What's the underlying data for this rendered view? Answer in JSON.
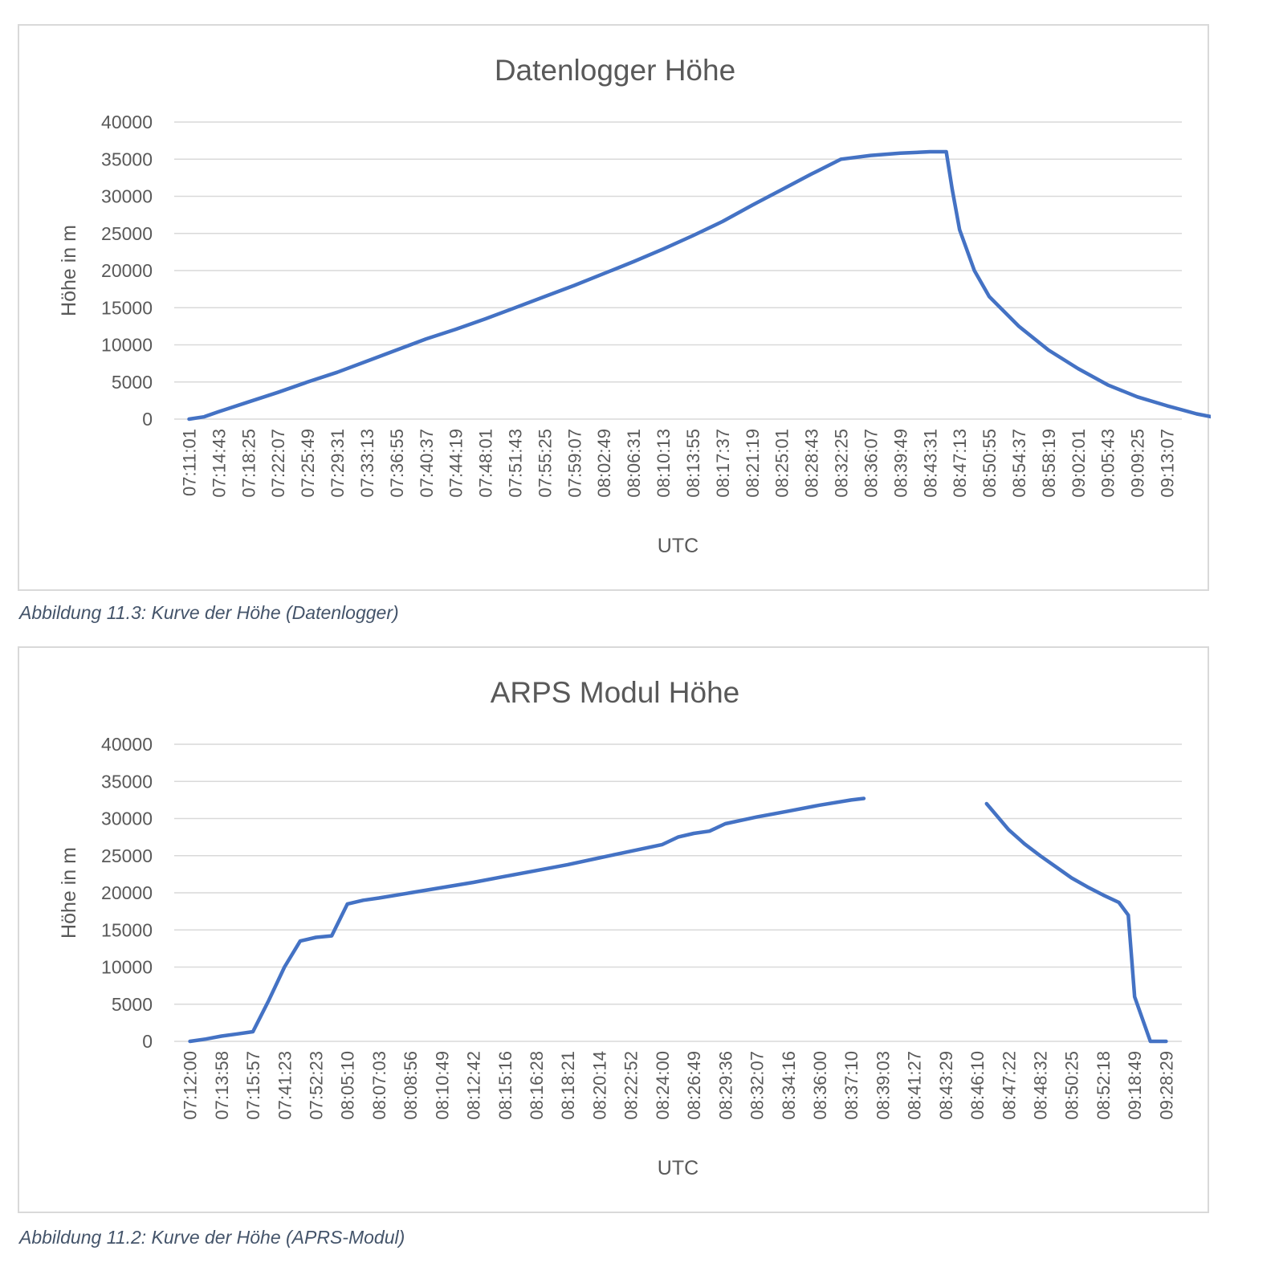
{
  "colors": {
    "series": "#4472c4",
    "grid": "#d9d9d9",
    "text": "#595959",
    "caption": "#44546a"
  },
  "captions": [
    "Abbildung 11.3: Kurve der Höhe (Datenlogger)",
    "Abbildung 11.2: Kurve der Höhe (APRS-Modul)"
  ],
  "chart_data": [
    {
      "type": "line",
      "title": "Datenlogger Höhe",
      "xlabel": "UTC",
      "ylabel": "Höhe in m",
      "ylim": [
        0,
        40000
      ],
      "yticks": [
        "0",
        "5000",
        "10000",
        "15000",
        "20000",
        "25000",
        "30000",
        "35000",
        "40000"
      ],
      "grid": true,
      "legend": "none",
      "categories": [
        "07:11:01",
        "07:14:43",
        "07:18:25",
        "07:22:07",
        "07:25:49",
        "07:29:31",
        "07:33:13",
        "07:36:55",
        "07:40:37",
        "07:44:19",
        "07:48:01",
        "07:51:43",
        "07:55:25",
        "07:59:07",
        "08:02:49",
        "08:06:31",
        "08:10:13",
        "08:13:55",
        "08:17:37",
        "08:21:19",
        "08:25:01",
        "08:28:43",
        "08:32:25",
        "08:36:07",
        "08:39:49",
        "08:43:31",
        "08:47:13",
        "08:50:55",
        "08:54:37",
        "08:58:19",
        "09:02:01",
        "09:05:43",
        "09:09:25",
        "09:13:07"
      ],
      "series": [
        {
          "x": [
            0,
            0.5,
            1,
            2,
            3,
            4,
            5,
            6,
            7,
            8,
            9,
            10,
            11,
            12,
            13,
            14,
            15,
            16,
            17,
            18,
            19,
            20,
            21,
            22,
            23,
            24,
            25,
            25.55,
            25.75,
            26,
            26.5,
            27,
            28,
            29,
            30,
            31,
            32,
            33,
            34,
            34.9
          ],
          "values": [
            0,
            300,
            1000,
            2300,
            3600,
            5000,
            6300,
            7800,
            9300,
            10800,
            12100,
            13500,
            15000,
            16500,
            18000,
            19600,
            21200,
            22900,
            24700,
            26600,
            28800,
            30900,
            33000,
            35000,
            35500,
            35800,
            36000,
            36000,
            31000,
            25500,
            20000,
            16500,
            12500,
            9300,
            6800,
            4600,
            3000,
            1800,
            700,
            0
          ]
        }
      ]
    },
    {
      "type": "line",
      "title": "ARPS Modul Höhe",
      "xlabel": "UTC",
      "ylabel": "Höhe in m",
      "ylim": [
        0,
        40000
      ],
      "yticks": [
        "0",
        "5000",
        "10000",
        "15000",
        "20000",
        "25000",
        "30000",
        "35000",
        "40000"
      ],
      "grid": true,
      "legend": "none",
      "categories": [
        "07:12:00",
        "07:13:58",
        "07:15:57",
        "07:41:23",
        "07:52:23",
        "08:05:10",
        "08:07:03",
        "08:08:56",
        "08:10:49",
        "08:12:42",
        "08:15:16",
        "08:16:28",
        "08:18:21",
        "08:20:14",
        "08:22:52",
        "08:24:00",
        "08:26:49",
        "08:29:36",
        "08:32:07",
        "08:34:16",
        "08:36:00",
        "08:37:10",
        "08:39:03",
        "08:41:27",
        "08:43:29",
        "08:46:10",
        "08:47:22",
        "08:48:32",
        "08:50:25",
        "08:52:18",
        "09:18:49",
        "09:28:29"
      ],
      "series": [
        {
          "segments": [
            {
              "x": [
                0,
                0.5,
                1,
                1.5,
                2,
                2.5,
                3,
                3.5,
                4,
                4.5,
                5,
                5.5,
                6,
                7,
                8,
                9,
                10,
                11,
                12,
                13,
                14,
                15,
                15.5,
                16,
                16.5,
                17,
                18,
                19,
                20,
                21,
                21.4
              ],
              "values": [
                0,
                300,
                700,
                1000,
                1300,
                5500,
                10000,
                13500,
                14000,
                14200,
                18500,
                19000,
                19300,
                20000,
                20700,
                21400,
                22200,
                23000,
                23800,
                24700,
                25600,
                26500,
                27500,
                28000,
                28300,
                29300,
                30200,
                31000,
                31800,
                32500,
                32700
              ]
            },
            {
              "x": [
                25.3,
                26,
                26.5,
                27,
                27.5,
                28,
                28.5,
                29,
                29.5,
                29.8,
                30,
                30.5,
                31
              ],
              "values": [
                32000,
                28500,
                26600,
                25000,
                23500,
                22000,
                20800,
                19700,
                18700,
                17000,
                6000,
                0,
                0
              ]
            }
          ]
        }
      ]
    }
  ]
}
